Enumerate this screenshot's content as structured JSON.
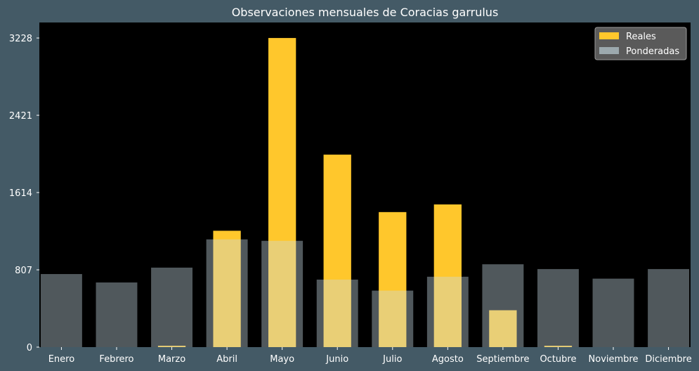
{
  "colors": {
    "page_background": "#445a66",
    "plot_background": "#000000",
    "text": "#ffffff",
    "legend_background": "#5a5a5a",
    "legend_border": "#9a9a9a"
  },
  "chart_data": {
    "type": "bar",
    "title": "Observaciones mensuales de Coracias garrulus",
    "xlabel": "",
    "ylabel": "",
    "categories": [
      "Enero",
      "Febrero",
      "Marzo",
      "Abril",
      "Mayo",
      "Junio",
      "Julio",
      "Agosto",
      "Septiembre",
      "Octubre",
      "Noviembre",
      "Diciembre"
    ],
    "yticks": [
      0,
      807,
      1614,
      2421,
      3228
    ],
    "ylim": [
      0,
      3390
    ],
    "grid": false,
    "legend_position": "top-right",
    "overlay": true,
    "series": [
      {
        "name": "Reales",
        "color": "#ffc72c",
        "opacity": 1,
        "bar_width_fraction": 0.5,
        "values": [
          0,
          0,
          14,
          1215,
          3228,
          2010,
          1410,
          1490,
          385,
          14,
          0,
          0
        ]
      },
      {
        "name": "Ponderadas",
        "color": "#c8dde6",
        "opacity": 0.4,
        "bar_width_fraction": 0.75,
        "values": [
          763,
          675,
          830,
          1125,
          1110,
          705,
          590,
          735,
          865,
          815,
          715,
          815
        ]
      }
    ]
  }
}
